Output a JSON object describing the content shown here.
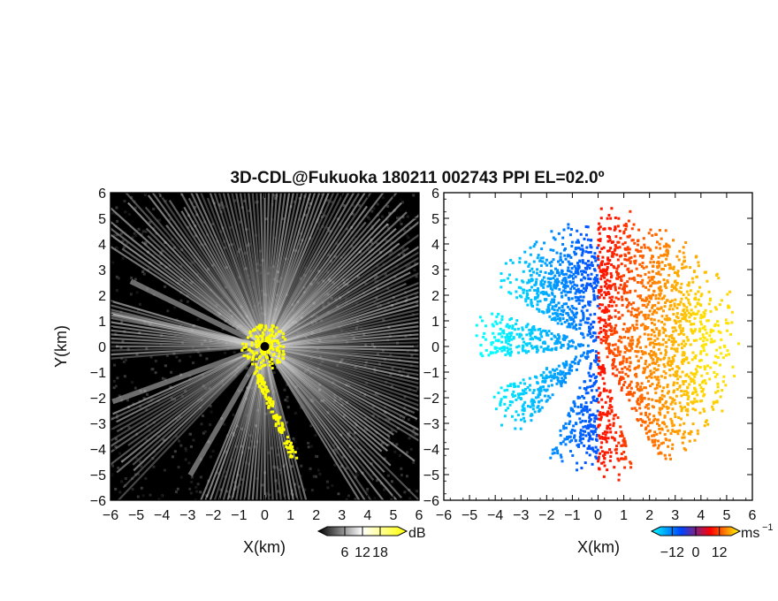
{
  "chart_data": [
    {
      "type": "heatmap",
      "panel": "reflectivity",
      "title": "3D-CDL@Fukuoka 180211 002743 PPI EL=02.0º",
      "xlabel": "X(km)",
      "ylabel": "Y(km)",
      "xlim": [
        -6,
        6
      ],
      "ylim": [
        -6,
        6
      ],
      "x_ticks": [
        "-6",
        "-5",
        "-4",
        "-3",
        "-2",
        "-1",
        "0",
        "1",
        "2",
        "3",
        "4",
        "5",
        "6"
      ],
      "y_ticks": [
        "6",
        "5",
        "4",
        "3",
        "2",
        "1",
        "0",
        "-1",
        "-2",
        "-3",
        "-4",
        "-5",
        "-6"
      ],
      "colorbar": {
        "unit": "dB",
        "ticks": [
          "6",
          "12",
          "18"
        ],
        "range": [
          0,
          24
        ],
        "colors": [
          "#000000",
          "#ffffff",
          "#ffff00"
        ]
      }
    },
    {
      "type": "heatmap",
      "panel": "doppler_velocity",
      "xlabel": "X(km)",
      "xlim": [
        -6,
        6
      ],
      "ylim": [
        -6,
        6
      ],
      "x_ticks": [
        "-6",
        "-5",
        "-4",
        "-3",
        "-2",
        "-1",
        "0",
        "1",
        "2",
        "3",
        "4",
        "5",
        "6"
      ],
      "y_ticks": [
        "6",
        "5",
        "4",
        "3",
        "2",
        "1",
        "0",
        "-1",
        "-2",
        "-3",
        "-4",
        "-5",
        "-6"
      ],
      "colorbar": {
        "unit": "ms",
        "unit_exponent": "−1",
        "ticks": [
          "−12",
          "0",
          "12"
        ],
        "range": [
          -18,
          18
        ],
        "colors": [
          "#00ffff",
          "#0044ff",
          "#ff0000",
          "#ffff00"
        ]
      }
    }
  ]
}
